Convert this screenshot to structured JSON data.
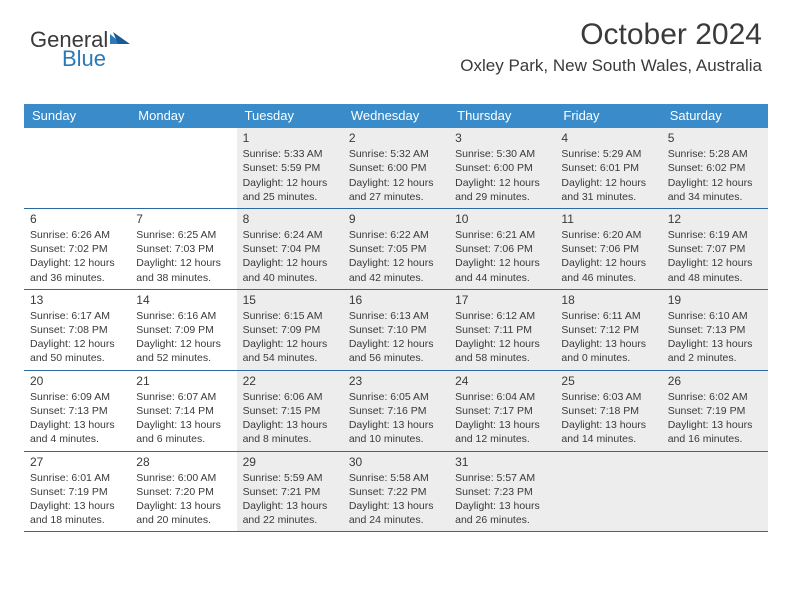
{
  "brand": {
    "part1": "General",
    "part2": "Blue"
  },
  "header": {
    "title": "October 2024",
    "location": "Oxley Park, New South Wales, Australia"
  },
  "colors": {
    "header_bg": "#3a8bc9",
    "header_text": "#ffffff",
    "row_border": "#2a6aa0",
    "shaded_bg": "#ededed",
    "text": "#3a3a3a",
    "brand_blue": "#2a7ab8"
  },
  "day_names": [
    "Sunday",
    "Monday",
    "Tuesday",
    "Wednesday",
    "Thursday",
    "Friday",
    "Saturday"
  ],
  "weeks": [
    [
      {
        "n": "",
        "sr": "",
        "ss": "",
        "dl": "",
        "sh": false
      },
      {
        "n": "",
        "sr": "",
        "ss": "",
        "dl": "",
        "sh": false
      },
      {
        "n": "1",
        "sr": "Sunrise: 5:33 AM",
        "ss": "Sunset: 5:59 PM",
        "dl": "Daylight: 12 hours and 25 minutes.",
        "sh": true
      },
      {
        "n": "2",
        "sr": "Sunrise: 5:32 AM",
        "ss": "Sunset: 6:00 PM",
        "dl": "Daylight: 12 hours and 27 minutes.",
        "sh": true
      },
      {
        "n": "3",
        "sr": "Sunrise: 5:30 AM",
        "ss": "Sunset: 6:00 PM",
        "dl": "Daylight: 12 hours and 29 minutes.",
        "sh": true
      },
      {
        "n": "4",
        "sr": "Sunrise: 5:29 AM",
        "ss": "Sunset: 6:01 PM",
        "dl": "Daylight: 12 hours and 31 minutes.",
        "sh": true
      },
      {
        "n": "5",
        "sr": "Sunrise: 5:28 AM",
        "ss": "Sunset: 6:02 PM",
        "dl": "Daylight: 12 hours and 34 minutes.",
        "sh": true
      }
    ],
    [
      {
        "n": "6",
        "sr": "Sunrise: 6:26 AM",
        "ss": "Sunset: 7:02 PM",
        "dl": "Daylight: 12 hours and 36 minutes.",
        "sh": false
      },
      {
        "n": "7",
        "sr": "Sunrise: 6:25 AM",
        "ss": "Sunset: 7:03 PM",
        "dl": "Daylight: 12 hours and 38 minutes.",
        "sh": false
      },
      {
        "n": "8",
        "sr": "Sunrise: 6:24 AM",
        "ss": "Sunset: 7:04 PM",
        "dl": "Daylight: 12 hours and 40 minutes.",
        "sh": true
      },
      {
        "n": "9",
        "sr": "Sunrise: 6:22 AM",
        "ss": "Sunset: 7:05 PM",
        "dl": "Daylight: 12 hours and 42 minutes.",
        "sh": true
      },
      {
        "n": "10",
        "sr": "Sunrise: 6:21 AM",
        "ss": "Sunset: 7:06 PM",
        "dl": "Daylight: 12 hours and 44 minutes.",
        "sh": true
      },
      {
        "n": "11",
        "sr": "Sunrise: 6:20 AM",
        "ss": "Sunset: 7:06 PM",
        "dl": "Daylight: 12 hours and 46 minutes.",
        "sh": true
      },
      {
        "n": "12",
        "sr": "Sunrise: 6:19 AM",
        "ss": "Sunset: 7:07 PM",
        "dl": "Daylight: 12 hours and 48 minutes.",
        "sh": true
      }
    ],
    [
      {
        "n": "13",
        "sr": "Sunrise: 6:17 AM",
        "ss": "Sunset: 7:08 PM",
        "dl": "Daylight: 12 hours and 50 minutes.",
        "sh": false
      },
      {
        "n": "14",
        "sr": "Sunrise: 6:16 AM",
        "ss": "Sunset: 7:09 PM",
        "dl": "Daylight: 12 hours and 52 minutes.",
        "sh": false
      },
      {
        "n": "15",
        "sr": "Sunrise: 6:15 AM",
        "ss": "Sunset: 7:09 PM",
        "dl": "Daylight: 12 hours and 54 minutes.",
        "sh": true
      },
      {
        "n": "16",
        "sr": "Sunrise: 6:13 AM",
        "ss": "Sunset: 7:10 PM",
        "dl": "Daylight: 12 hours and 56 minutes.",
        "sh": true
      },
      {
        "n": "17",
        "sr": "Sunrise: 6:12 AM",
        "ss": "Sunset: 7:11 PM",
        "dl": "Daylight: 12 hours and 58 minutes.",
        "sh": true
      },
      {
        "n": "18",
        "sr": "Sunrise: 6:11 AM",
        "ss": "Sunset: 7:12 PM",
        "dl": "Daylight: 13 hours and 0 minutes.",
        "sh": true
      },
      {
        "n": "19",
        "sr": "Sunrise: 6:10 AM",
        "ss": "Sunset: 7:13 PM",
        "dl": "Daylight: 13 hours and 2 minutes.",
        "sh": true
      }
    ],
    [
      {
        "n": "20",
        "sr": "Sunrise: 6:09 AM",
        "ss": "Sunset: 7:13 PM",
        "dl": "Daylight: 13 hours and 4 minutes.",
        "sh": false
      },
      {
        "n": "21",
        "sr": "Sunrise: 6:07 AM",
        "ss": "Sunset: 7:14 PM",
        "dl": "Daylight: 13 hours and 6 minutes.",
        "sh": false
      },
      {
        "n": "22",
        "sr": "Sunrise: 6:06 AM",
        "ss": "Sunset: 7:15 PM",
        "dl": "Daylight: 13 hours and 8 minutes.",
        "sh": true
      },
      {
        "n": "23",
        "sr": "Sunrise: 6:05 AM",
        "ss": "Sunset: 7:16 PM",
        "dl": "Daylight: 13 hours and 10 minutes.",
        "sh": true
      },
      {
        "n": "24",
        "sr": "Sunrise: 6:04 AM",
        "ss": "Sunset: 7:17 PM",
        "dl": "Daylight: 13 hours and 12 minutes.",
        "sh": true
      },
      {
        "n": "25",
        "sr": "Sunrise: 6:03 AM",
        "ss": "Sunset: 7:18 PM",
        "dl": "Daylight: 13 hours and 14 minutes.",
        "sh": true
      },
      {
        "n": "26",
        "sr": "Sunrise: 6:02 AM",
        "ss": "Sunset: 7:19 PM",
        "dl": "Daylight: 13 hours and 16 minutes.",
        "sh": true
      }
    ],
    [
      {
        "n": "27",
        "sr": "Sunrise: 6:01 AM",
        "ss": "Sunset: 7:19 PM",
        "dl": "Daylight: 13 hours and 18 minutes.",
        "sh": false
      },
      {
        "n": "28",
        "sr": "Sunrise: 6:00 AM",
        "ss": "Sunset: 7:20 PM",
        "dl": "Daylight: 13 hours and 20 minutes.",
        "sh": false
      },
      {
        "n": "29",
        "sr": "Sunrise: 5:59 AM",
        "ss": "Sunset: 7:21 PM",
        "dl": "Daylight: 13 hours and 22 minutes.",
        "sh": true
      },
      {
        "n": "30",
        "sr": "Sunrise: 5:58 AM",
        "ss": "Sunset: 7:22 PM",
        "dl": "Daylight: 13 hours and 24 minutes.",
        "sh": true
      },
      {
        "n": "31",
        "sr": "Sunrise: 5:57 AM",
        "ss": "Sunset: 7:23 PM",
        "dl": "Daylight: 13 hours and 26 minutes.",
        "sh": true
      },
      {
        "n": "",
        "sr": "",
        "ss": "",
        "dl": "",
        "sh": true
      },
      {
        "n": "",
        "sr": "",
        "ss": "",
        "dl": "",
        "sh": true
      }
    ]
  ]
}
